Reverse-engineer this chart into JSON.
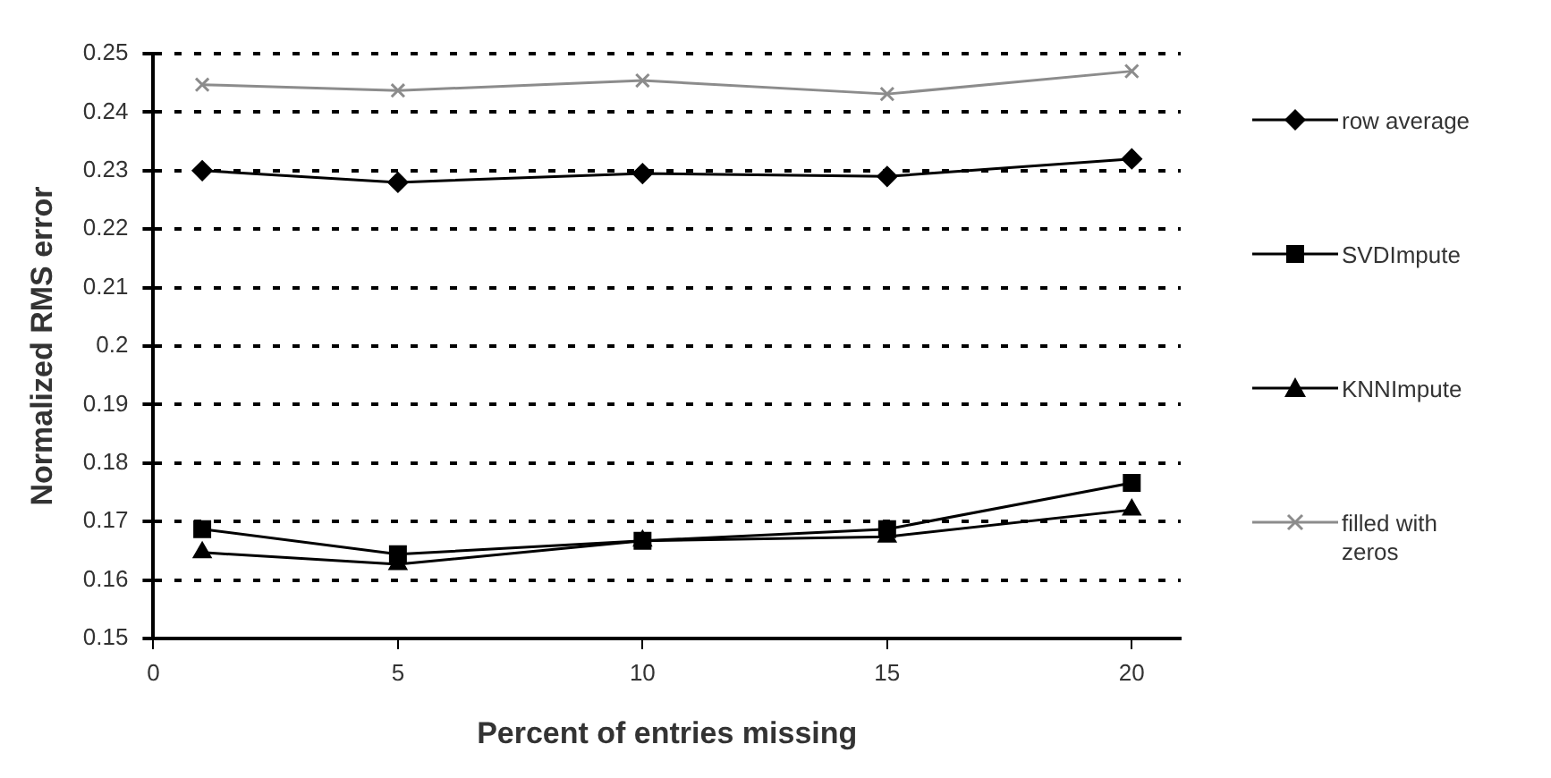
{
  "chart_data": {
    "type": "line",
    "xlabel": "Percent of entries missing",
    "ylabel": "Normalized RMS error",
    "x": [
      1,
      5,
      10,
      15,
      20
    ],
    "series": [
      {
        "name": "row average",
        "color": "#000000",
        "marker": "diamond",
        "values": [
          0.23,
          0.228,
          0.2295,
          0.229,
          0.232
        ]
      },
      {
        "name": "SVDImpute",
        "color": "#000000",
        "marker": "square",
        "values": [
          0.1687,
          0.1644,
          0.1667,
          0.1687,
          0.1766
        ]
      },
      {
        "name": "KNNImpute",
        "color": "#000000",
        "marker": "triangle",
        "values": [
          0.1647,
          0.1627,
          0.1667,
          0.1674,
          0.172
        ]
      },
      {
        "name": "filled with zeros",
        "color": "#8c8c8c",
        "marker": "cross",
        "values": [
          0.2447,
          0.2437,
          0.2454,
          0.2431,
          0.247
        ]
      }
    ],
    "xlim": [
      0,
      21
    ],
    "xticks": [
      0,
      5,
      10,
      15,
      20
    ],
    "ylim": [
      0.15,
      0.25
    ],
    "yticks": [
      0.15,
      0.16,
      0.17,
      0.18,
      0.19,
      0.2,
      0.21,
      0.22,
      0.23,
      0.24,
      0.25
    ],
    "grid": "y",
    "legend": "right",
    "line_style": "solid"
  }
}
